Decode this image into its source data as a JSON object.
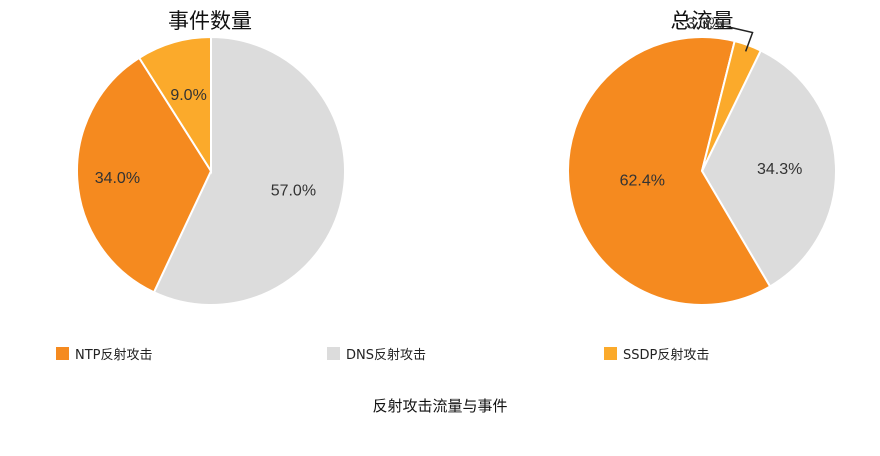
{
  "colors": {
    "ntp": "#F58A1F",
    "dns": "#DCDCDC",
    "ssdp": "#FBAA2B"
  },
  "legend": {
    "ntp": "NTP反射攻击",
    "dns": "DNS反射攻击",
    "ssdp": "SSDP反射攻击"
  },
  "caption": "反射攻击流量与事件",
  "chart_data": [
    {
      "type": "pie",
      "title": "事件数量",
      "series": [
        {
          "name": "DNS反射攻击",
          "value": 57.0,
          "label": "57.0%",
          "color": "#DCDCDC"
        },
        {
          "name": "NTP反射攻击",
          "value": 34.0,
          "label": "34.0%",
          "color": "#F58A1F"
        },
        {
          "name": "SSDP反射攻击",
          "value": 9.0,
          "label": "9.0%",
          "color": "#FBAA2B"
        }
      ]
    },
    {
      "type": "pie",
      "title": "总流量",
      "series": [
        {
          "name": "DNS反射攻击",
          "value": 34.3,
          "label": "34.3%",
          "color": "#DCDCDC"
        },
        {
          "name": "NTP反射攻击",
          "value": 62.4,
          "label": "62.4%",
          "color": "#F58A1F"
        },
        {
          "name": "SSDP反射攻击",
          "value": 3.3,
          "label": "3.3%",
          "color": "#FBAA2B"
        }
      ]
    }
  ]
}
